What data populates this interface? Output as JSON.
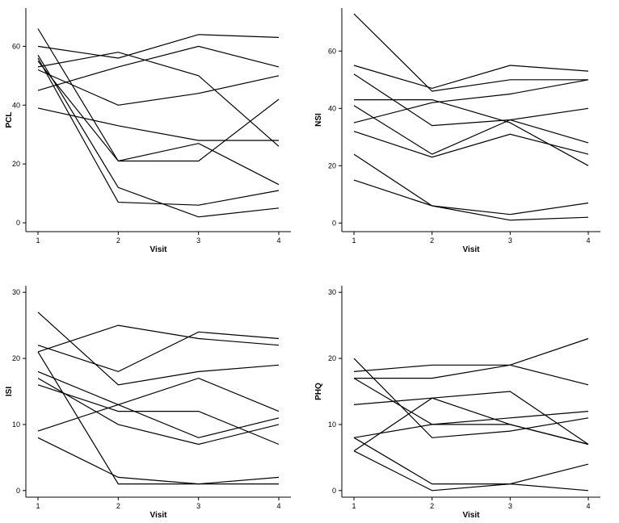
{
  "chart_data": [
    {
      "type": "line",
      "xlabel": "Visit",
      "ylabel": "PCL",
      "x": [
        1,
        2,
        3,
        4
      ],
      "xticks": [
        "1",
        "2",
        "3",
        "4"
      ],
      "yticks": [
        0,
        20,
        40,
        60
      ],
      "ylim": [
        -3,
        73
      ],
      "series": [
        {
          "values": [
            66,
            21,
            21,
            42
          ]
        },
        {
          "values": [
            57,
            12,
            2,
            5
          ]
        },
        {
          "values": [
            56,
            7,
            6,
            11
          ]
        },
        {
          "values": [
            55,
            21,
            27,
            13
          ]
        },
        {
          "values": [
            53,
            58,
            50,
            26
          ]
        },
        {
          "values": [
            52,
            40,
            44,
            50
          ]
        },
        {
          "values": [
            60,
            56,
            64,
            63
          ]
        },
        {
          "values": [
            45,
            53,
            60,
            53
          ]
        },
        {
          "values": [
            39,
            33,
            28,
            28
          ]
        }
      ]
    },
    {
      "type": "line",
      "xlabel": "Visit",
      "ylabel": "NSI",
      "x": [
        1,
        2,
        3,
        4
      ],
      "xticks": [
        "1",
        "2",
        "3",
        "4"
      ],
      "yticks": [
        0,
        20,
        40,
        60
      ],
      "ylim": [
        -3,
        75
      ],
      "series": [
        {
          "values": [
            73,
            46,
            50,
            50
          ]
        },
        {
          "values": [
            55,
            47,
            55,
            53
          ]
        },
        {
          "values": [
            52,
            34,
            36,
            40
          ]
        },
        {
          "values": [
            43,
            43,
            35,
            20
          ]
        },
        {
          "values": [
            41,
            24,
            36,
            28
          ]
        },
        {
          "values": [
            35,
            42,
            45,
            50
          ]
        },
        {
          "values": [
            32,
            23,
            31,
            24
          ]
        },
        {
          "values": [
            24,
            6,
            1,
            2
          ]
        },
        {
          "values": [
            15,
            6,
            3,
            7
          ]
        }
      ]
    },
    {
      "type": "line",
      "xlabel": "Visit",
      "ylabel": "ISI",
      "x": [
        1,
        2,
        3,
        4
      ],
      "xticks": [
        "1",
        "2",
        "3",
        "4"
      ],
      "yticks": [
        0,
        10,
        20,
        30
      ],
      "ylim": [
        -1,
        31
      ],
      "series": [
        {
          "values": [
            27,
            16,
            18,
            19
          ]
        },
        {
          "values": [
            22,
            18,
            24,
            23
          ]
        },
        {
          "values": [
            21,
            25,
            23,
            22
          ]
        },
        {
          "values": [
            21,
            1,
            1,
            1
          ]
        },
        {
          "values": [
            18,
            13,
            8,
            11
          ]
        },
        {
          "values": [
            17,
            10,
            7,
            10
          ]
        },
        {
          "values": [
            16,
            12,
            12,
            7
          ]
        },
        {
          "values": [
            9,
            13,
            17,
            12
          ]
        },
        {
          "values": [
            8,
            2,
            1,
            2
          ]
        }
      ]
    },
    {
      "type": "line",
      "xlabel": "Visit",
      "ylabel": "PHQ",
      "x": [
        1,
        2,
        3,
        4
      ],
      "xticks": [
        "1",
        "2",
        "3",
        "4"
      ],
      "yticks": [
        0,
        10,
        20,
        30
      ],
      "ylim": [
        -1,
        31
      ],
      "series": [
        {
          "values": [
            20,
            8,
            9,
            11
          ]
        },
        {
          "values": [
            18,
            19,
            19,
            16
          ]
        },
        {
          "values": [
            17,
            17,
            19,
            23
          ]
        },
        {
          "values": [
            17,
            10,
            10,
            7
          ]
        },
        {
          "values": [
            13,
            14,
            15,
            7
          ]
        },
        {
          "values": [
            8,
            10,
            11,
            12
          ]
        },
        {
          "values": [
            8,
            1,
            1,
            0
          ]
        },
        {
          "values": [
            6,
            14,
            10,
            7
          ]
        },
        {
          "values": [
            6,
            0,
            1,
            4
          ]
        }
      ]
    }
  ]
}
